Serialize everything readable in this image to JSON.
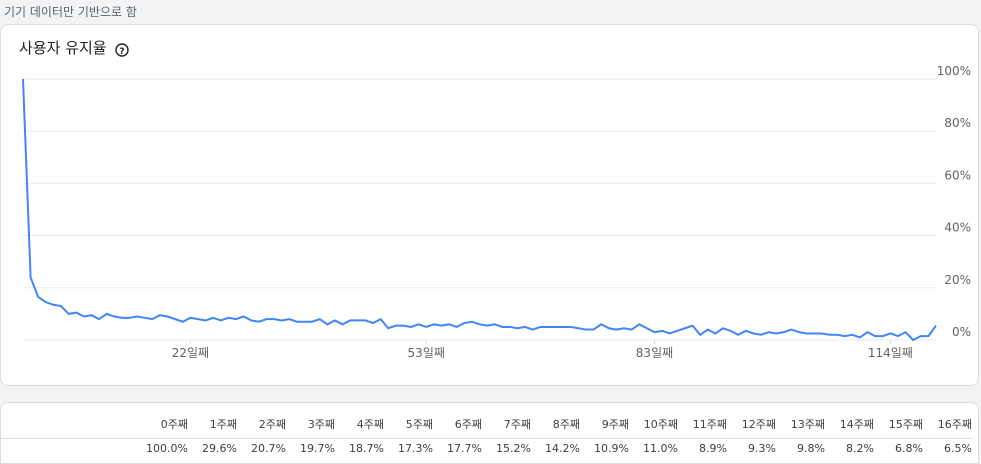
{
  "header": {
    "note": "기기 데이터만 기반으로 함"
  },
  "chart_data": {
    "type": "line",
    "title": "사용자 유지율",
    "x": [
      0,
      1,
      2,
      3,
      4,
      5,
      6,
      7,
      8,
      9,
      10,
      11,
      12,
      13,
      14,
      15,
      16,
      17,
      18,
      19,
      20,
      21,
      22,
      23,
      24,
      25,
      26,
      27,
      28,
      29,
      30,
      31,
      32,
      33,
      34,
      35,
      36,
      37,
      38,
      39,
      40,
      41,
      42,
      43,
      44,
      45,
      46,
      47,
      48,
      49,
      50,
      51,
      52,
      53,
      54,
      55,
      56,
      57,
      58,
      59,
      60,
      61,
      62,
      63,
      64,
      65,
      66,
      67,
      68,
      69,
      70,
      71,
      72,
      73,
      74,
      75,
      76,
      77,
      78,
      79,
      80,
      81,
      82,
      83,
      84,
      85,
      86,
      87,
      88,
      89,
      90,
      91,
      92,
      93,
      94,
      95,
      96,
      97,
      98,
      99,
      100,
      101,
      102,
      103,
      104,
      105,
      106,
      107,
      108,
      109,
      110,
      111,
      112,
      113,
      114,
      115,
      116,
      117,
      118,
      119,
      120
    ],
    "series": [
      {
        "color": "#4285f4",
        "values": [
          100,
          24,
          16.5,
          14.5,
          13.5,
          13,
          10,
          10.5,
          9,
          9.5,
          8,
          10,
          9,
          8.5,
          8.5,
          9,
          8.5,
          8,
          9.5,
          9,
          8,
          7,
          8.5,
          8,
          7.5,
          8.5,
          7.5,
          8.5,
          8,
          9,
          7.5,
          7,
          8,
          8,
          7.5,
          8,
          7,
          7,
          7,
          8,
          6,
          7.5,
          6,
          7.5,
          7.5,
          7.5,
          6.5,
          8,
          4.5,
          5.5,
          5.5,
          5,
          6,
          5,
          6,
          5.5,
          6,
          5,
          6.5,
          7,
          6,
          5.5,
          6,
          5,
          5,
          4.5,
          5,
          4,
          5,
          5,
          5,
          5,
          5,
          4.5,
          4,
          4,
          6,
          4.5,
          4,
          4.5,
          4,
          6,
          4.5,
          3,
          3.5,
          2.5,
          3.5,
          4.5,
          5.5,
          2,
          4,
          2.5,
          4.5,
          3.5,
          2,
          3.5,
          2.5,
          2,
          3,
          2.5,
          3,
          4,
          3,
          2.5,
          2.5,
          2.5,
          2,
          2,
          1.5,
          2,
          1,
          3,
          1.5,
          1.5,
          2.5,
          1.5,
          3,
          0,
          1.5,
          1.5,
          5.5
        ]
      }
    ],
    "xlim": [
      0,
      120
    ],
    "xticks": [
      {
        "value": 22,
        "label": "22일째"
      },
      {
        "value": 53,
        "label": "53일째"
      },
      {
        "value": 83,
        "label": "83일째"
      },
      {
        "value": 114,
        "label": "114일째"
      }
    ],
    "ylim": [
      0,
      100
    ],
    "yticks": [
      {
        "value": 0,
        "label": "0%"
      },
      {
        "value": 20,
        "label": "20%"
      },
      {
        "value": 40,
        "label": "40%"
      },
      {
        "value": 60,
        "label": "60%"
      },
      {
        "value": 80,
        "label": "80%"
      },
      {
        "value": 100,
        "label": "100%"
      }
    ],
    "grid": true
  },
  "table": {
    "headers": [
      "0주째",
      "1주째",
      "2주째",
      "3주째",
      "4주째",
      "5주째",
      "6주째",
      "7주째",
      "8주째",
      "9주째",
      "10주째",
      "11주째",
      "12주째",
      "13주째",
      "14주째",
      "15주째",
      "16주째"
    ],
    "rows": [
      [
        "100.0%",
        "29.6%",
        "20.7%",
        "19.7%",
        "18.7%",
        "17.3%",
        "17.7%",
        "15.2%",
        "14.2%",
        "10.9%",
        "11.0%",
        "8.9%",
        "9.3%",
        "9.8%",
        "8.2%",
        "6.8%",
        "6.5%"
      ]
    ]
  }
}
